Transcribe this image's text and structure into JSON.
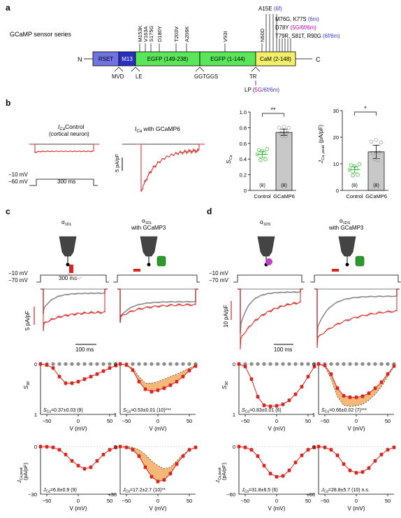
{
  "panels": {
    "a": "a",
    "b": "b",
    "c": "c",
    "d": "d"
  },
  "a": {
    "series_label": "GCaMP sensor series",
    "n_term": "N",
    "c_term": "C",
    "blocks": [
      {
        "label": "RSET",
        "color": "#6f73e0",
        "text": "#000"
      },
      {
        "label": "M13",
        "color": "#2a2fc0",
        "text": "#fff"
      },
      {
        "label": "EGFP (149-238)",
        "color": "#5ae65a",
        "text": "#000"
      },
      {
        "label": "EGFP (1-144)",
        "color": "#5ae65a",
        "text": "#000"
      },
      {
        "label": "CaM (2-148)",
        "color": "#f2f06a",
        "text": "#000"
      }
    ],
    "mutations_top": [
      "M153K",
      "V163A",
      "S175G",
      "D180Y",
      "T203V",
      "A206K",
      "V93I",
      "N60D"
    ],
    "a15e": "A15E",
    "a15e_tag": "(6f)",
    "right_lines": [
      {
        "text": "M76G, K77S",
        "tag": "(6m)",
        "tag_color": "#3a3acc"
      },
      {
        "text": "D78Y",
        "tag": "(5G/6f/6m)",
        "tag_color": "#c000c0"
      },
      {
        "text": "T79R, S81T, R90G",
        "tag": "(6f/6m)",
        "tag_color": "#3a3acc"
      }
    ],
    "linkers_bottom": [
      "MVD",
      "LE",
      "GGTGGS",
      "TR"
    ],
    "lp_prefix": "LP (",
    "lp_tag": "5G",
    "lp_suffix": "/6f/6m)"
  },
  "b": {
    "trace1_title": "Control",
    "trace1_sub": "(cortical neuron)",
    "trace2_title": "with GCaMP6",
    "ica": "I",
    "ica_sub": "Ca",
    "scale": "5 pA/pF",
    "v1": "−10 mV",
    "v2": "−60 mV",
    "dur": "300 ms",
    "chart_sca": {
      "type": "bar",
      "categories": [
        "Control",
        "GCaMP6"
      ],
      "values": [
        0.46,
        0.74
      ],
      "errors": [
        0.04,
        0.04
      ],
      "n_labels": [
        "(8)",
        "(8)"
      ],
      "ylabel": "S",
      "ylabel_sub": "Ca",
      "ylim": [
        0,
        1.0
      ],
      "yticks": [
        "0",
        "0.2",
        "0.4",
        "0.6",
        "0.8",
        "1.0"
      ],
      "sig": "**"
    },
    "chart_jca": {
      "type": "bar",
      "categories": [
        "Control",
        "GCaMP6"
      ],
      "values": [
        7.8,
        14.5
      ],
      "errors": [
        1.2,
        2.5
      ],
      "n_labels": [
        "(8)",
        "(8)"
      ],
      "ylabel": "J",
      "ylabel_sub": "Ca, peak",
      "ylabel_unit": "(pA/pF)",
      "ylim": [
        0,
        30
      ],
      "yticks": [
        "0",
        "10",
        "20",
        "30"
      ],
      "sig": "*"
    }
  },
  "c": {
    "col1_title": "α",
    "col1_sub": "1DL",
    "col2_title": "α",
    "col2_sub": "1DL",
    "col2_line2": "with GCaMP3",
    "v1": "−10 mV",
    "v2": "−70 mV",
    "dur": "300 ms",
    "scale_y": "5 pA/pF",
    "scale_x": "100 ms",
    "s_label": "S",
    "s_sub": "90",
    "s_ticks": [
      "0",
      "1"
    ],
    "s_note1": "S",
    "s_note1_sub": "Ca",
    "s_note1_val": "=0.37±0.03 (9)",
    "s_note2_val": "=0.53±0.01 (10)***",
    "j_label": "J",
    "j_sub": "Ca,peak",
    "j_unit": "(pA/pF)",
    "j_ticks": [
      "0",
      "−30"
    ],
    "j_note1": "J",
    "j_note1_sub": "Ca",
    "j_note1_val": "=6.8±0.9 (9)",
    "j_note2_val": "=17.2±2.7 (10)**",
    "x_ticks": [
      "−50",
      "0",
      "50"
    ],
    "xlabel": "V (mV)"
  },
  "d": {
    "col1_title": "α",
    "col1_sub": "1DS",
    "col2_title": "α",
    "col2_sub": "1DS",
    "col2_line2": "with GCaMP3",
    "v1": "−10 mV",
    "v2": "−70 mV",
    "scale_y": "10 pA/pF",
    "scale_x": "100 ms",
    "s_note1_val": "=0.83±0.01 (6)",
    "s_note2_val": "=0.66±0.02 (7)***",
    "j_ticks": [
      "0",
      "−60"
    ],
    "j_note1_val": "=31.8±6.5 (6)",
    "j_note2_val": "=28.8±5.7 (10)",
    "j_note2_ns": "n.s."
  },
  "chart_data": [
    {
      "type": "line",
      "title": "",
      "xlabel": "V (mV)",
      "ylabel": "S90",
      "x": [
        -60,
        -50,
        -40,
        -30,
        -20,
        -10,
        0,
        10,
        20,
        30,
        40,
        50,
        60
      ],
      "series": [
        {
          "name": "",
          "values": [
            0.0,
            0.02,
            0.08,
            0.25,
            0.38,
            0.38,
            0.35,
            0.3,
            0.25,
            0.2,
            0.14,
            0.08,
            0.03
          ]
        }
      ]
    },
    {
      "type": "line",
      "title": "",
      "xlabel": "V (mV)",
      "ylabel": "S90",
      "x": [
        -60,
        -50,
        -40,
        -30,
        -20,
        -10,
        0,
        10,
        20,
        30,
        40,
        50,
        60
      ],
      "series": [
        {
          "name": "",
          "values": [
            0.0,
            0.02,
            0.12,
            0.35,
            0.5,
            0.55,
            0.52,
            0.48,
            0.42,
            0.35,
            0.25,
            0.13,
            0.04
          ]
        }
      ]
    },
    {
      "type": "line",
      "title": "",
      "xlabel": "V (mV)",
      "ylabel": "S90",
      "x": [
        -60,
        -50,
        -40,
        -30,
        -20,
        -10,
        0,
        10,
        20,
        30,
        40,
        50,
        60
      ],
      "series": [
        {
          "name": "",
          "values": [
            0.0,
            0.05,
            0.3,
            0.65,
            0.82,
            0.84,
            0.83,
            0.8,
            0.72,
            0.6,
            0.45,
            0.25,
            0.05
          ]
        }
      ]
    },
    {
      "type": "line",
      "title": "",
      "xlabel": "V (mV)",
      "ylabel": "S90",
      "x": [
        -60,
        -50,
        -40,
        -30,
        -20,
        -10,
        0,
        10,
        20,
        30,
        40,
        50,
        60
      ],
      "series": [
        {
          "name": "",
          "values": [
            0.0,
            0.03,
            0.2,
            0.48,
            0.63,
            0.66,
            0.66,
            0.64,
            0.58,
            0.48,
            0.36,
            0.2,
            0.04
          ]
        }
      ]
    },
    {
      "type": "line",
      "title": "",
      "xlabel": "V (mV)",
      "ylabel": "JCa,peak",
      "x": [
        -60,
        -50,
        -40,
        -30,
        -20,
        -10,
        0,
        10,
        20,
        30,
        40,
        50,
        60
      ],
      "series": [
        {
          "name": "",
          "values": [
            0,
            -0.1,
            -0.5,
            -2,
            -5,
            -9,
            -12,
            -14,
            -13,
            -9,
            -5,
            -2,
            -0.5
          ]
        }
      ]
    },
    {
      "type": "line",
      "title": "",
      "xlabel": "V (mV)",
      "ylabel": "JCa,peak",
      "x": [
        -60,
        -50,
        -40,
        -30,
        -20,
        -10,
        0,
        10,
        20,
        30,
        40,
        50,
        60
      ],
      "series": [
        {
          "name": "",
          "values": [
            0,
            -0.5,
            -2,
            -6,
            -13,
            -19,
            -22,
            -21,
            -17,
            -11,
            -6,
            -2,
            -0.5
          ]
        }
      ]
    },
    {
      "type": "line",
      "title": "",
      "xlabel": "V (mV)",
      "ylabel": "JCa,peak",
      "x": [
        -60,
        -50,
        -40,
        -30,
        -20,
        -10,
        0,
        10,
        20,
        30,
        40,
        50,
        60
      ],
      "series": [
        {
          "name": "",
          "values": [
            0,
            -1,
            -4,
            -12,
            -24,
            -34,
            -38,
            -37,
            -30,
            -20,
            -11,
            -4,
            -1
          ]
        }
      ]
    },
    {
      "type": "line",
      "title": "",
      "xlabel": "V (mV)",
      "ylabel": "JCa,peak",
      "x": [
        -60,
        -50,
        -40,
        -30,
        -20,
        -10,
        0,
        10,
        20,
        30,
        40,
        50,
        60
      ],
      "series": [
        {
          "name": "",
          "values": [
            0,
            -1,
            -4,
            -11,
            -22,
            -30,
            -33,
            -32,
            -27,
            -18,
            -10,
            -4,
            -1
          ]
        }
      ]
    }
  ]
}
